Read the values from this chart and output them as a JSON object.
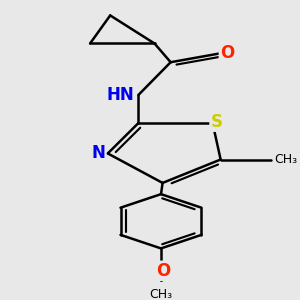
{
  "bg_color": "#e8e8e8",
  "bond_color": "#000000",
  "bond_width": 1.8,
  "atom_labels": {
    "O": {
      "color": "#ff2200",
      "fontsize": 12
    },
    "N": {
      "color": "#0000ee",
      "fontsize": 12
    },
    "S": {
      "color": "#cccc00",
      "fontsize": 12
    },
    "CH3_me": {
      "color": "#000000",
      "fontsize": 9
    },
    "OCH3": {
      "color": "#000000",
      "fontsize": 9
    }
  },
  "xlim": [
    -1.8,
    1.8
  ],
  "ylim": [
    -3.8,
    2.2
  ]
}
